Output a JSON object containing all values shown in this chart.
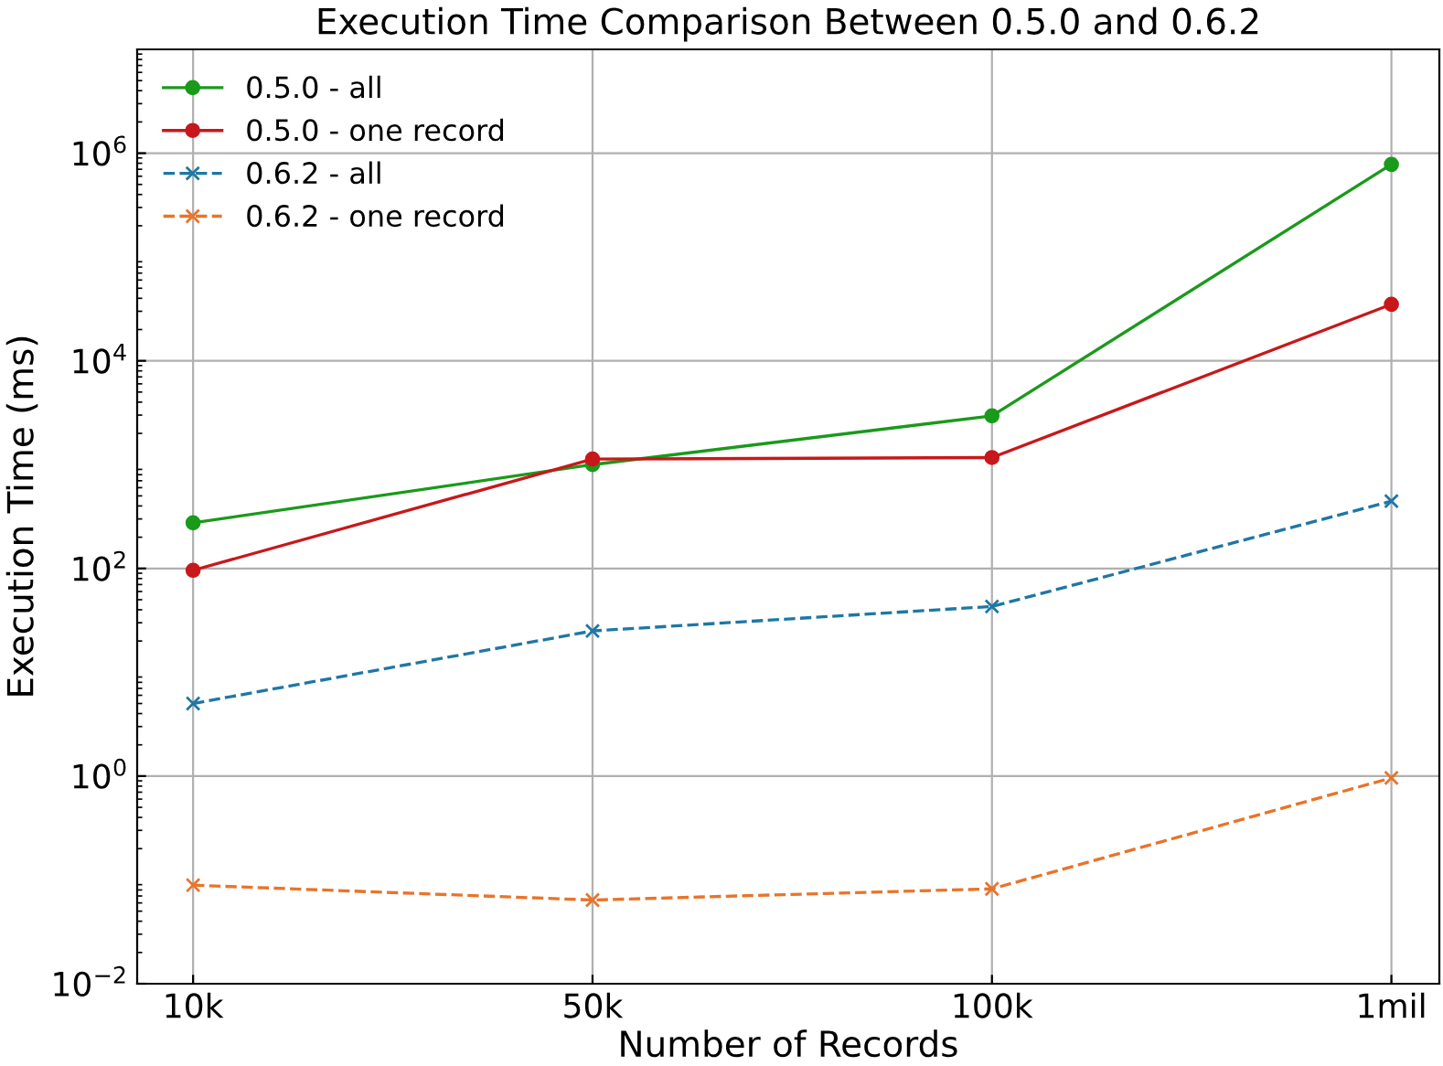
{
  "chart_data": {
    "type": "line",
    "title": "Execution Time Comparison Between 0.5.0 and 0.6.2",
    "xlabel": "Number of Records",
    "ylabel": "Execution Time (ms)",
    "categories": [
      "10k",
      "50k",
      "100k",
      "1mil"
    ],
    "series": [
      {
        "name": "0.5.0 - all",
        "color": "#1a9a1a",
        "marker": "circle",
        "line_style": "solid",
        "values": [
          275,
          1000,
          2950,
          780000
        ]
      },
      {
        "name": "0.5.0 - one record",
        "color": "#c8181b",
        "marker": "circle",
        "line_style": "solid",
        "values": [
          96,
          1130,
          1170,
          35000
        ]
      },
      {
        "name": "0.6.2 - all",
        "color": "#1f77a4",
        "marker": "cross",
        "line_style": "dashed",
        "values": [
          5.0,
          25,
          43,
          445
        ]
      },
      {
        "name": "0.6.2 - one record",
        "color": "#e8742a",
        "marker": "cross",
        "line_style": "dashed",
        "values": [
          0.089,
          0.064,
          0.082,
          0.96
        ]
      }
    ],
    "log": "y",
    "ylim": [
      0.01,
      10000000
    ],
    "yticks": [
      {
        "value": 0.01,
        "label": "10$^{−2}$"
      },
      {
        "value": 1,
        "label": "10$^{0}$"
      },
      {
        "value": 100,
        "label": "10$^{2}$"
      },
      {
        "value": 10000,
        "label": "10$^{4}$"
      },
      {
        "value": 1000000,
        "label": "10$^{6}$"
      }
    ],
    "grid": true,
    "legend": "top left"
  }
}
